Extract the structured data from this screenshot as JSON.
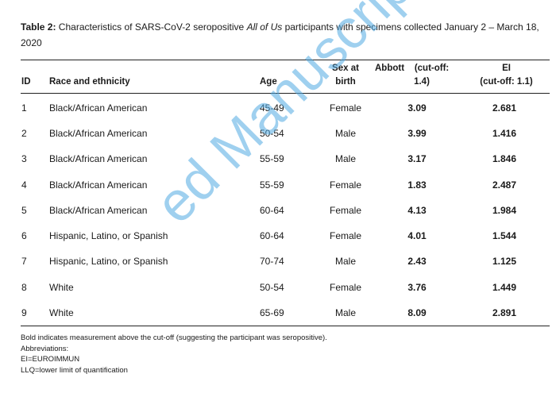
{
  "caption": {
    "label": "Table 2:",
    "text_before": " Characteristics of SARS-CoV-2 seropositive ",
    "italic": "All of Us",
    "text_after": " participants with specimens collected January 2 – March 18, 2020"
  },
  "headers": {
    "id": "ID",
    "race": "Race and ethnicity",
    "age": "Age",
    "sex_line1": "Sex at",
    "sex_line2": "birth",
    "abbott_line1": "Abbott    (cut-off:",
    "abbott_line2": "1.4)",
    "ei_line1": "EI",
    "ei_line2": "(cut-off: 1.1)"
  },
  "rows": [
    {
      "id": "1",
      "race": "Black/African American",
      "age": "45-49",
      "sex": "Female",
      "abbott": "3.09",
      "ei": "2.681"
    },
    {
      "id": "2",
      "race": "Black/African American",
      "age": "50-54",
      "sex": "Male",
      "abbott": "3.99",
      "ei": "1.416"
    },
    {
      "id": "3",
      "race": "Black/African American",
      "age": "55-59",
      "sex": "Male",
      "abbott": "3.17",
      "ei": "1.846"
    },
    {
      "id": "4",
      "race": "Black/African American",
      "age": "55-59",
      "sex": "Female",
      "abbott": "1.83",
      "ei": "2.487"
    },
    {
      "id": "5",
      "race": "Black/African American",
      "age": "60-64",
      "sex": "Female",
      "abbott": "4.13",
      "ei": "1.984"
    },
    {
      "id": "6",
      "race": "Hispanic, Latino, or Spanish",
      "age": "60-64",
      "sex": "Female",
      "abbott": "4.01",
      "ei": "1.544"
    },
    {
      "id": "7",
      "race": "Hispanic, Latino, or Spanish",
      "age": "70-74",
      "sex": "Male",
      "abbott": "2.43",
      "ei": "1.125"
    },
    {
      "id": "8",
      "race": "White",
      "age": "50-54",
      "sex": "Female",
      "abbott": "3.76",
      "ei": "1.449"
    },
    {
      "id": "9",
      "race": "White",
      "age": "65-69",
      "sex": "Male",
      "abbott": "8.09",
      "ei": "2.891"
    }
  ],
  "notes": [
    "Bold indicates measurement above the cut-off (suggesting the participant was seropositive).",
    "Abbreviations:",
    "EI=EUROIMMUN",
    "LLQ=lower limit of quantification"
  ],
  "watermark": "ed Manuscript",
  "colors": {
    "watermark": "#50aae1",
    "text": "#1a1a1a"
  }
}
